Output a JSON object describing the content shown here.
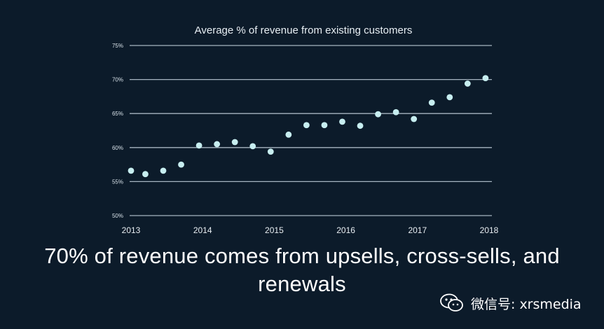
{
  "chart_data": {
    "type": "scatter",
    "title": "Average % of revenue from existing customers",
    "xlabel": "",
    "ylabel": "",
    "xlim": [
      2013,
      2018
    ],
    "ylim": [
      50,
      75
    ],
    "x_ticks": [
      "2013",
      "2014",
      "2015",
      "2016",
      "2017",
      "2018"
    ],
    "y_ticks": [
      "50%",
      "55%",
      "60%",
      "65%",
      "70%",
      "75%"
    ],
    "grid": true,
    "marker_color": "#c7eef0",
    "points": [
      {
        "x": 2013.0,
        "y": 56.6
      },
      {
        "x": 2013.2,
        "y": 56.1
      },
      {
        "x": 2013.45,
        "y": 56.6
      },
      {
        "x": 2013.7,
        "y": 57.5
      },
      {
        "x": 2013.95,
        "y": 60.3
      },
      {
        "x": 2014.2,
        "y": 60.5
      },
      {
        "x": 2014.45,
        "y": 60.8
      },
      {
        "x": 2014.7,
        "y": 60.2
      },
      {
        "x": 2014.95,
        "y": 59.4
      },
      {
        "x": 2015.2,
        "y": 61.9
      },
      {
        "x": 2015.45,
        "y": 63.3
      },
      {
        "x": 2015.7,
        "y": 63.3
      },
      {
        "x": 2015.95,
        "y": 63.8
      },
      {
        "x": 2016.2,
        "y": 63.2
      },
      {
        "x": 2016.45,
        "y": 64.9
      },
      {
        "x": 2016.7,
        "y": 65.2
      },
      {
        "x": 2016.95,
        "y": 64.2
      },
      {
        "x": 2017.2,
        "y": 66.6
      },
      {
        "x": 2017.45,
        "y": 67.4
      },
      {
        "x": 2017.7,
        "y": 69.4
      },
      {
        "x": 2017.95,
        "y": 70.2
      }
    ]
  },
  "caption": "70% of revenue comes from upsells, cross-sells, and renewals",
  "watermark": {
    "text": "微信号: xrsmedia",
    "icon": "wechat-icon"
  }
}
